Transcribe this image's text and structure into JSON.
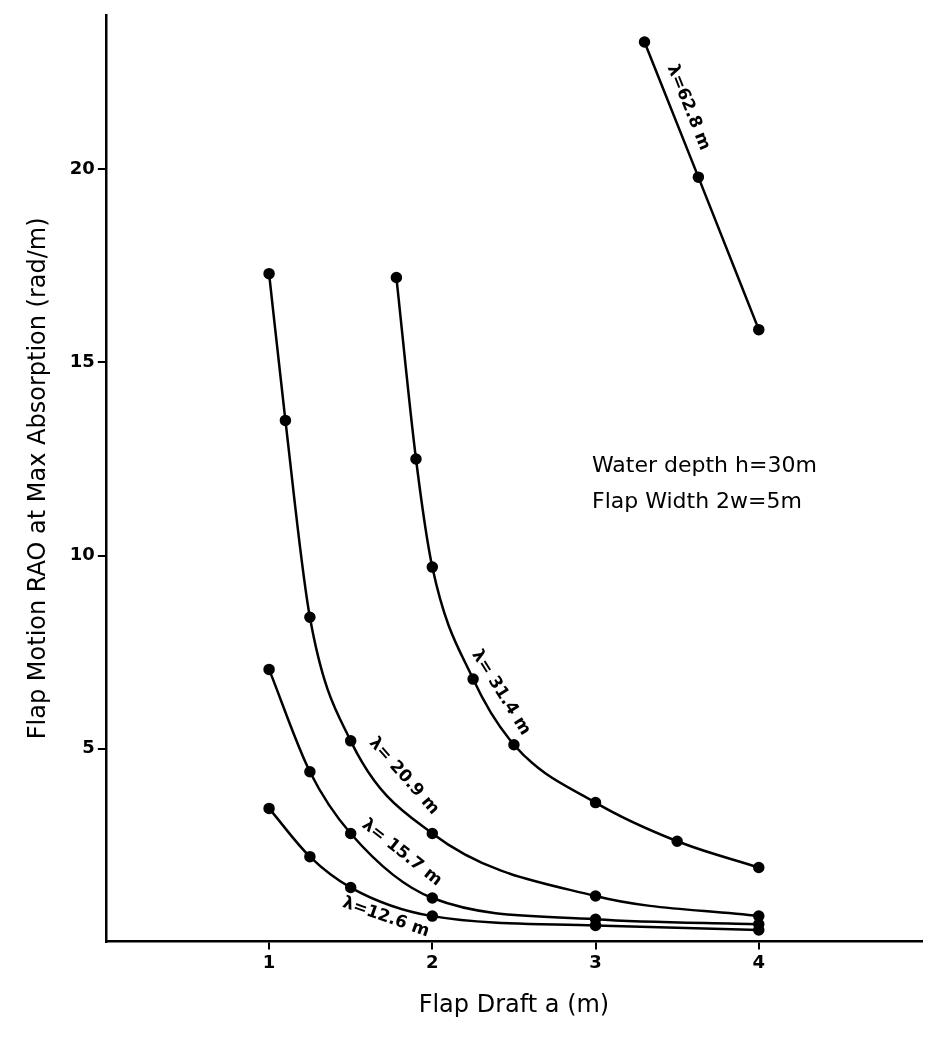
{
  "chart_data": {
    "type": "line",
    "xlabel": "Flap Draft a (m)",
    "ylabel": "Flap Motion RAO at Max Absorption (rad/m)",
    "xlim": [
      0,
      5
    ],
    "xticks": [
      1,
      2,
      3,
      4
    ],
    "ylim": [
      0,
      24
    ],
    "yticks": [
      5,
      10,
      15,
      20
    ],
    "grid": false,
    "legend": false,
    "marker": "circle",
    "line_style": "solid",
    "annotations": [
      "Water depth h=30m",
      "Flap Width 2w=5m"
    ],
    "series": [
      {
        "name": "λ=62.8 m",
        "color": "#000000",
        "x": [
          3.3,
          3.63,
          4
        ],
        "values": [
          23.3,
          19.8,
          15.85
        ]
      },
      {
        "name": "λ= 31.4 m",
        "color": "#000000",
        "x": [
          1.78,
          1.9,
          2,
          2.25,
          2.5,
          3,
          3.5,
          4
        ],
        "values": [
          17.2,
          12.5,
          9.7,
          6.8,
          5.1,
          3.6,
          2.6,
          1.92
        ]
      },
      {
        "name": "λ= 20.9 m",
        "color": "#000000",
        "x": [
          1,
          1.1,
          1.25,
          1.5,
          2,
          3,
          4
        ],
        "values": [
          17.3,
          13.5,
          8.4,
          5.2,
          2.8,
          1.18,
          0.66
        ]
      },
      {
        "name": "λ= 15.7 m",
        "color": "#000000",
        "x": [
          1,
          1.25,
          1.5,
          2,
          3,
          4
        ],
        "values": [
          7.05,
          4.4,
          2.8,
          1.13,
          0.58,
          0.45
        ]
      },
      {
        "name": "λ=12.6 m",
        "color": "#000000",
        "x": [
          1,
          1.25,
          1.5,
          2,
          3,
          4
        ],
        "values": [
          3.45,
          2.2,
          1.4,
          0.66,
          0.42,
          0.3
        ]
      }
    ]
  }
}
